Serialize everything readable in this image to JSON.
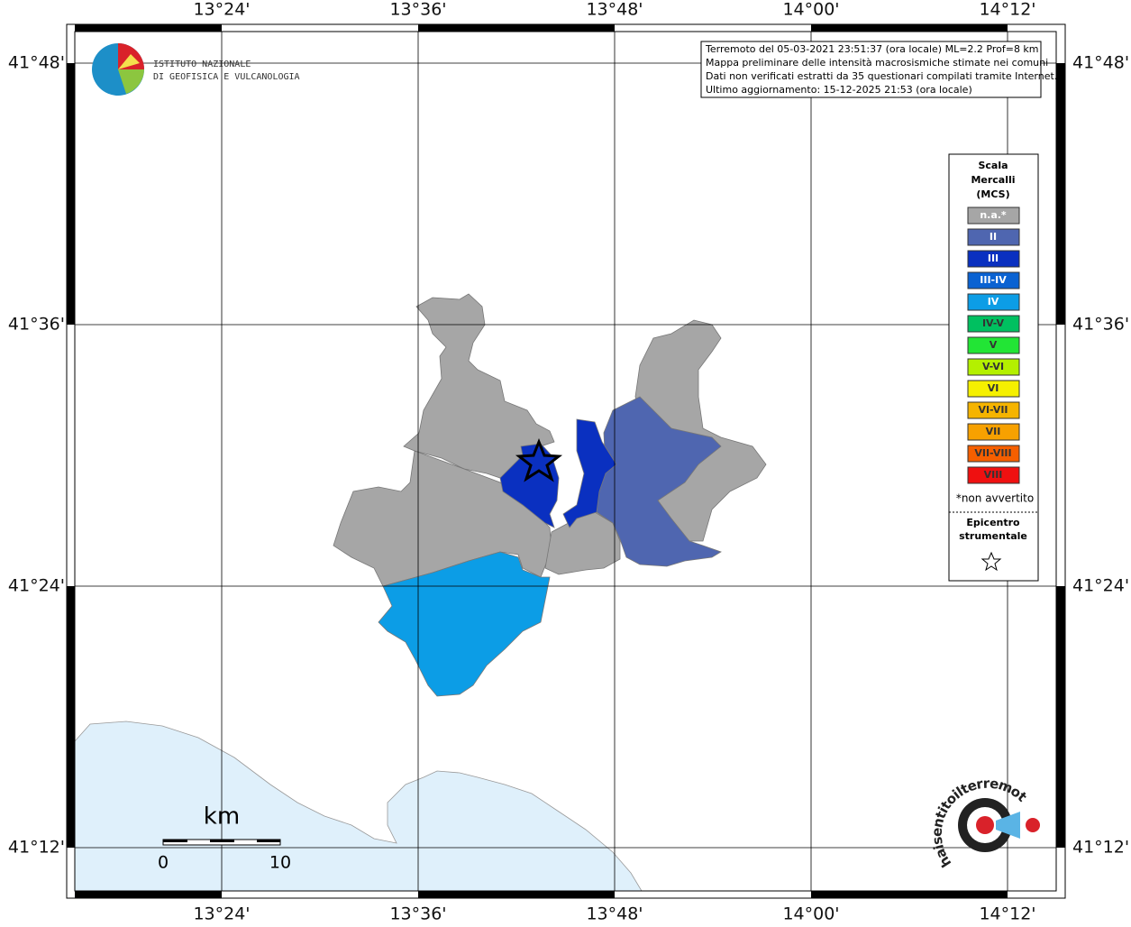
{
  "map": {
    "lon_ticks": [
      "13°24'",
      "13°36'",
      "13°48'",
      "14°00'",
      "14°12'"
    ],
    "lat_ticks": [
      "41°48'",
      "41°36'",
      "41°24'",
      "41°12'"
    ],
    "info": [
      "Terremoto del 05-03-2021 23:51:37 (ora locale) ML=2.2 Prof=8 km",
      "Mappa preliminare delle intensità macrosismiche stimate nei comuni",
      "Dati non verificati estratti da 35 questionari compilati tramite Internet.",
      "Ultimo aggiornamento: 15-12-2025 21:53 (ora locale)"
    ],
    "logo": [
      "ISTITUTO NAZIONALE",
      "DI GEOFISICA E VULCANOLOGIA"
    ],
    "legend": {
      "title": [
        "Scala",
        "Mercalli",
        "(MCS)"
      ],
      "items": [
        {
          "label": "n.a.*",
          "color": "#a6a6a6"
        },
        {
          "label": "II",
          "color": "#4f66b0"
        },
        {
          "label": "III",
          "color": "#0a30c0"
        },
        {
          "label": "III-IV",
          "color": "#0a62d2"
        },
        {
          "label": "IV",
          "color": "#0c9de6"
        },
        {
          "label": "IV-V",
          "color": "#00c060"
        },
        {
          "label": "V",
          "color": "#22e535"
        },
        {
          "label": "V-VI",
          "color": "#b4f000"
        },
        {
          "label": "VI",
          "color": "#f5f000"
        },
        {
          "label": "VI-VII",
          "color": "#f5b400"
        },
        {
          "label": "VII",
          "color": "#f7a100"
        },
        {
          "label": "VII-VIII",
          "color": "#f55f00"
        },
        {
          "label": "VIII",
          "color": "#ef1010"
        }
      ],
      "note": "*non avvertito",
      "epicenter": [
        "Epicentro",
        "strumentale"
      ]
    },
    "scale": {
      "unit": "km",
      "labels": [
        "0",
        "10"
      ]
    },
    "brand": "haisentitoilterremoto.it"
  }
}
